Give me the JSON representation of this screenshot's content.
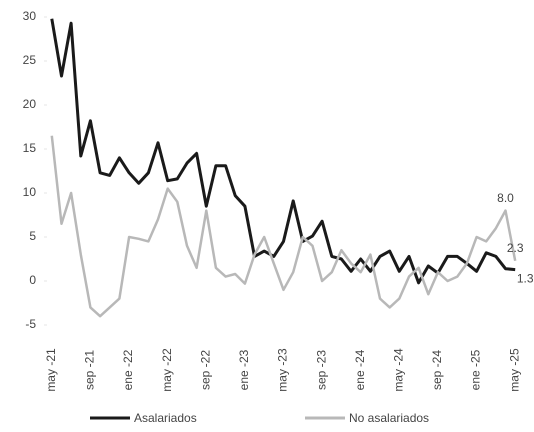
{
  "chart_data": {
    "type": "line",
    "categories": [
      "may -21",
      null,
      null,
      null,
      "sep -21",
      null,
      null,
      null,
      "ene -22",
      null,
      null,
      null,
      "may -22",
      null,
      null,
      null,
      "sep -22",
      null,
      null,
      null,
      "ene -23",
      null,
      null,
      null,
      "may -23",
      null,
      null,
      null,
      "sep -23",
      null,
      null,
      null,
      "ene -24",
      null,
      null,
      null,
      "may -24",
      null,
      null,
      null,
      "sep -24",
      null,
      null,
      null,
      "ene -25",
      null,
      null,
      null,
      "may -25"
    ],
    "series": [
      {
        "name": "Asalariados",
        "color": "#1a1a1a",
        "values": [
          29.8,
          23.3,
          29.3,
          14.2,
          18.2,
          12.3,
          12,
          14,
          12.3,
          11.1,
          12.3,
          15.7,
          11.4,
          11.6,
          13.4,
          14.5,
          8.5,
          13.1,
          13.1,
          9.7,
          8.5,
          2.8,
          3.4,
          2.8,
          4.5,
          9.1,
          4.5,
          5.1,
          6.8,
          2.8,
          2.5,
          1.1,
          2.5,
          1.1,
          2.8,
          3.4,
          1.1,
          2.8,
          -0.2,
          1.7,
          0.9,
          2.8,
          2.8,
          2,
          1.1,
          3.2,
          2.8,
          1.4,
          1.3
        ],
        "value_labels": [
          null,
          null,
          null,
          null,
          null,
          null,
          null,
          null,
          null,
          null,
          null,
          null,
          null,
          null,
          null,
          null,
          null,
          null,
          null,
          null,
          null,
          null,
          null,
          null,
          null,
          null,
          null,
          null,
          null,
          null,
          null,
          null,
          null,
          null,
          null,
          null,
          null,
          null,
          null,
          null,
          null,
          null,
          null,
          null,
          null,
          null,
          null,
          null,
          "1.3"
        ]
      },
      {
        "name": "No asalariados",
        "color": "#b8b8b8",
        "values": [
          16.5,
          6.5,
          10,
          3,
          -3,
          -4,
          -3,
          -2,
          5,
          4.8,
          4.5,
          7,
          10.5,
          9,
          4,
          1.5,
          8,
          1.5,
          0.5,
          0.8,
          -0.3,
          3,
          5,
          2,
          -1,
          1,
          5,
          4,
          0,
          1,
          3.5,
          2,
          1,
          3,
          -2,
          -3,
          -2,
          0.5,
          1.5,
          -1.5,
          1,
          0,
          0.5,
          2,
          5,
          4.5,
          6,
          8,
          2.3
        ],
        "value_labels": [
          null,
          null,
          null,
          null,
          null,
          null,
          null,
          null,
          null,
          null,
          null,
          null,
          null,
          null,
          null,
          null,
          null,
          null,
          null,
          null,
          null,
          null,
          null,
          null,
          null,
          null,
          null,
          null,
          null,
          null,
          null,
          null,
          null,
          null,
          null,
          null,
          null,
          null,
          null,
          null,
          null,
          null,
          null,
          null,
          null,
          null,
          null,
          "8.0",
          "2.3"
        ]
      }
    ],
    "ylim": [
      -5,
      30
    ],
    "yticks": [
      -5,
      0,
      5,
      10,
      15,
      20,
      25,
      30
    ],
    "grid": false,
    "legend": "bottom"
  }
}
